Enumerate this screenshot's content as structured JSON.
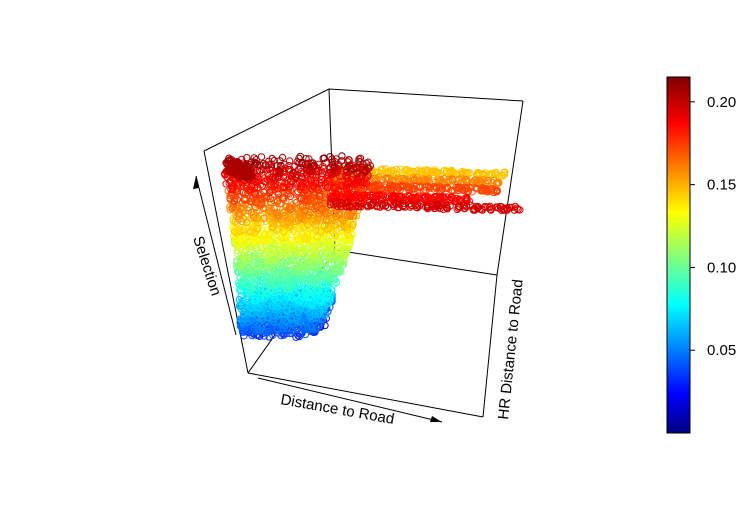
{
  "chart_data": {
    "type": "scatter",
    "title": "",
    "xlabel": "Distance to Road",
    "ylabel": "HR Distance to Road",
    "zlabel": "Selection",
    "color_scale": {
      "palette": "jet",
      "range": [
        0.0,
        0.215
      ],
      "ticks": [
        0.05,
        0.1,
        0.15,
        0.2
      ],
      "tick_labels": [
        "0.05",
        "0.10",
        "0.15",
        "0.20"
      ]
    },
    "colors": {
      "low": "#00007f",
      "high": "#7f0000",
      "axis": "#000000",
      "background": "#ffffff"
    }
  }
}
